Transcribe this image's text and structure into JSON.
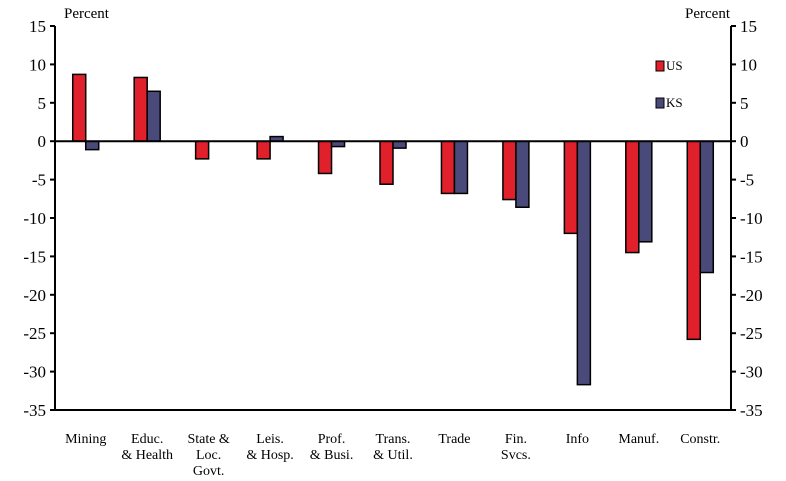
{
  "chart_data": {
    "type": "bar",
    "ylabel_left": "Percent",
    "ylabel_right": "Percent",
    "ylim": [
      -35,
      15
    ],
    "yticks": [
      15,
      10,
      5,
      0,
      -5,
      -10,
      -15,
      -20,
      -25,
      -30,
      -35
    ],
    "grid": false,
    "legend_position": "top-right",
    "categories": [
      [
        "Mining"
      ],
      [
        "Educ.",
        "& Health"
      ],
      [
        "State &",
        "Loc.",
        "Govt."
      ],
      [
        "Leis.",
        "& Hosp."
      ],
      [
        "Prof.",
        "& Busi."
      ],
      [
        "Trans.",
        "& Util."
      ],
      [
        "Trade"
      ],
      [
        "Fin.",
        "Svcs."
      ],
      [
        "Info"
      ],
      [
        "Manuf."
      ],
      [
        "Constr."
      ]
    ],
    "series": [
      {
        "name": "US",
        "color": "#e0202a",
        "values": [
          8.7,
          8.3,
          -2.3,
          -2.3,
          -4.2,
          -5.6,
          -6.8,
          -7.6,
          -12.0,
          -14.5,
          -25.8
        ]
      },
      {
        "name": "KS",
        "color": "#4a4a7a",
        "values": [
          -1.1,
          6.5,
          0,
          0.6,
          -0.7,
          -0.9,
          -6.8,
          -8.6,
          -31.7,
          -13.1,
          -17.1
        ]
      }
    ]
  }
}
